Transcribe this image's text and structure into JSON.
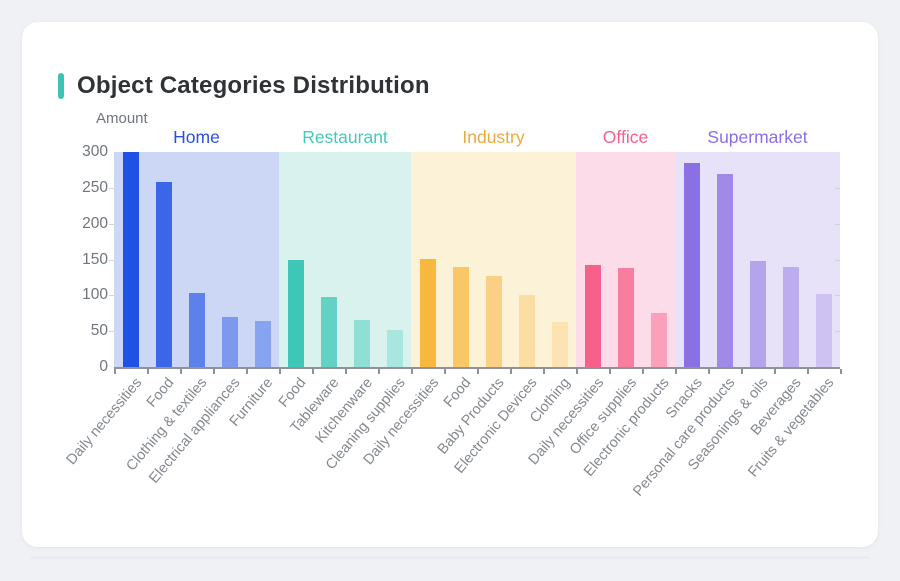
{
  "page": {
    "page_bg": "#f0f1f4",
    "card_bg": "#ffffff",
    "accent_color": "#3ec4b6"
  },
  "header": {
    "title": "Object Categories Distribution"
  },
  "chart_data": {
    "type": "bar",
    "title": "Object Categories Distribution",
    "xlabel": "",
    "ylabel": "Amount",
    "ylim": [
      0,
      300
    ],
    "yticks": [
      0,
      50,
      100,
      150,
      200,
      250,
      300
    ],
    "grid": false,
    "legend_position": "none",
    "groups": [
      {
        "name": "Home",
        "label_color": "#2b50e0",
        "band_color": "#ccd7f5",
        "bars": [
          {
            "category": "Daily necessities",
            "value": 300,
            "color": "#1e51e4"
          },
          {
            "category": "Food",
            "value": 258,
            "color": "#3b66e7"
          },
          {
            "category": "Clothing & textiles",
            "value": 103,
            "color": "#5c81ea"
          },
          {
            "category": "Electrical appliances",
            "value": 70,
            "color": "#7d99ef"
          },
          {
            "category": "Furniture",
            "value": 64,
            "color": "#88a3f0"
          }
        ]
      },
      {
        "name": "Restaurant",
        "label_color": "#43cbb9",
        "band_color": "#d9f2ee",
        "bars": [
          {
            "category": "Food",
            "value": 149,
            "color": "#3ec7b6"
          },
          {
            "category": "Tableware",
            "value": 97,
            "color": "#63d2c4"
          },
          {
            "category": "Kitchenware",
            "value": 65,
            "color": "#8fdfd5"
          },
          {
            "category": "Cleaning supplies",
            "value": 51,
            "color": "#a7e7df"
          }
        ]
      },
      {
        "name": "Industry",
        "label_color": "#eba93f",
        "band_color": "#fcf2d7",
        "bars": [
          {
            "category": "Daily necessities",
            "value": 151,
            "color": "#f7b83f"
          },
          {
            "category": "Food",
            "value": 139,
            "color": "#f9c765"
          },
          {
            "category": "Baby Products",
            "value": 127,
            "color": "#fad084"
          },
          {
            "category": "Electronic Devices",
            "value": 100,
            "color": "#fcdda2"
          },
          {
            "category": "Clothing",
            "value": 63,
            "color": "#fde3b4"
          }
        ]
      },
      {
        "name": "Office",
        "label_color": "#f4618c",
        "band_color": "#fbdce8",
        "bars": [
          {
            "category": "Daily necessities",
            "value": 143,
            "color": "#f7608d"
          },
          {
            "category": "Office supplies",
            "value": 138,
            "color": "#f87da0"
          },
          {
            "category": "Electronic products",
            "value": 75,
            "color": "#faa0bb"
          }
        ]
      },
      {
        "name": "Supermarket",
        "label_color": "#8a6fe8",
        "band_color": "#e7e2f7",
        "bars": [
          {
            "category": "Snacks",
            "value": 285,
            "color": "#8a70e3"
          },
          {
            "category": "Personal care products",
            "value": 270,
            "color": "#9f8ae8"
          },
          {
            "category": "Seasonings & oils",
            "value": 148,
            "color": "#b4a4ec"
          },
          {
            "category": "Beverages",
            "value": 140,
            "color": "#bcaeee"
          },
          {
            "category": "Fruits & vegetables",
            "value": 102,
            "color": "#cdc2f2"
          }
        ]
      }
    ]
  }
}
